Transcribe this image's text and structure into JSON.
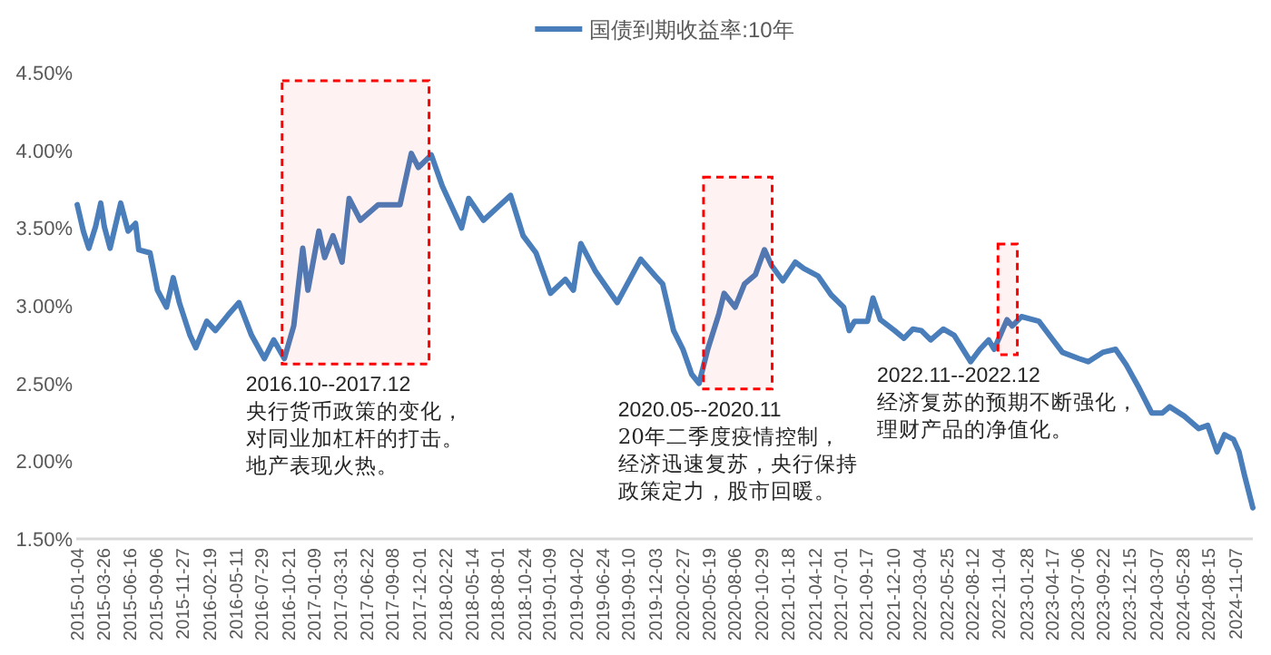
{
  "chart_data": {
    "type": "line",
    "legend": "top",
    "grid": false,
    "marker": "none",
    "line_style": "solid",
    "xlim": [
      "2015-01-01",
      "2024-12-31"
    ],
    "xticks": [
      "2015-01-04",
      "2015-03-26",
      "2015-06-16",
      "2015-09-06",
      "2015-11-27",
      "2016-02-19",
      "2016-05-11",
      "2016-07-29",
      "2016-10-21",
      "2017-01-09",
      "2017-03-31",
      "2017-06-22",
      "2017-09-08",
      "2017-12-01",
      "2018-02-22",
      "2018-05-14",
      "2018-08-01",
      "2018-10-24",
      "2019-01-09",
      "2019-04-02",
      "2019-06-24",
      "2019-09-10",
      "2019-12-03",
      "2020-02-27",
      "2020-05-19",
      "2020-08-06",
      "2020-10-29",
      "2021-01-18",
      "2021-04-12",
      "2021-07-01",
      "2021-09-17",
      "2021-12-10",
      "2022-03-04",
      "2022-05-25",
      "2022-08-12",
      "2022-11-04",
      "2023-01-28",
      "2023-04-17",
      "2023-07-06",
      "2023-09-22",
      "2023-12-15",
      "2024-03-07",
      "2024-05-28",
      "2024-08-15",
      "2024-11-07"
    ],
    "ylim": [
      1.5,
      4.5
    ],
    "yticks": [
      {
        "value": 1.5,
        "label": "1.50%"
      },
      {
        "value": 2.0,
        "label": "2.00%"
      },
      {
        "value": 2.5,
        "label": "2.50%"
      },
      {
        "value": 3.0,
        "label": "3.00%"
      },
      {
        "value": 3.5,
        "label": "3.50%"
      },
      {
        "value": 4.0,
        "label": "4.00%"
      },
      {
        "value": 4.5,
        "label": "4.50%"
      }
    ],
    "series": [
      {
        "name": "国债到期收益率:10年",
        "color": "#4a7ebb",
        "x": [
          "2015-01-04",
          "2015-01-23",
          "2015-02-09",
          "2015-03-02",
          "2015-03-18",
          "2015-03-29",
          "2015-04-16",
          "2015-05-19",
          "2015-06-11",
          "2015-07-04",
          "2015-07-14",
          "2015-08-18",
          "2015-09-10",
          "2015-10-08",
          "2015-10-29",
          "2015-11-17",
          "2015-12-20",
          "2016-01-07",
          "2016-02-10",
          "2016-03-08",
          "2016-04-16",
          "2016-05-20",
          "2016-06-28",
          "2016-08-07",
          "2016-09-05",
          "2016-10-08",
          "2016-11-06",
          "2016-12-04",
          "2016-12-20",
          "2017-01-23",
          "2017-02-10",
          "2017-03-08",
          "2017-04-05",
          "2017-04-27",
          "2017-06-01",
          "2017-07-26",
          "2017-10-02",
          "2017-11-06",
          "2017-11-28",
          "2018-01-07",
          "2018-02-10",
          "2018-04-11",
          "2018-05-03",
          "2018-06-18",
          "2018-09-10",
          "2018-10-19",
          "2018-11-28",
          "2019-01-12",
          "2019-02-27",
          "2019-03-24",
          "2019-04-16",
          "2019-06-01",
          "2019-08-07",
          "2019-10-19",
          "2019-12-04",
          "2019-12-26",
          "2020-01-29",
          "2020-02-27",
          "2020-03-25",
          "2020-04-17",
          "2020-05-14",
          "2020-06-18",
          "2020-07-04",
          "2020-08-07",
          "2020-09-05",
          "2020-10-09",
          "2020-11-06",
          "2020-11-28",
          "2021-01-02",
          "2021-02-10",
          "2021-03-08",
          "2021-04-22",
          "2021-06-01",
          "2021-07-10",
          "2021-07-27",
          "2021-08-13",
          "2021-09-22",
          "2021-10-09",
          "2021-11-01",
          "2021-12-15",
          "2022-01-13",
          "2022-02-10",
          "2022-03-08",
          "2022-04-06",
          "2022-05-15",
          "2022-06-18",
          "2022-08-08",
          "2022-09-06",
          "2022-10-03",
          "2022-10-20",
          "2022-11-29",
          "2022-12-15",
          "2023-01-13",
          "2023-03-08",
          "2023-04-17",
          "2023-05-20",
          "2023-07-10",
          "2023-08-08",
          "2023-09-22",
          "2023-11-01",
          "2023-12-04",
          "2024-01-13",
          "2024-02-21",
          "2024-03-25",
          "2024-04-17",
          "2024-06-01",
          "2024-07-16",
          "2024-08-13",
          "2024-09-11",
          "2024-10-04",
          "2024-11-01",
          "2024-11-18",
          "2024-12-05",
          "2024-12-31"
        ],
        "values": [
          3.65,
          3.48,
          3.37,
          3.51,
          3.66,
          3.51,
          3.37,
          3.66,
          3.48,
          3.53,
          3.36,
          3.34,
          3.1,
          2.99,
          3.18,
          3.02,
          2.81,
          2.73,
          2.9,
          2.84,
          2.94,
          3.02,
          2.81,
          2.66,
          2.78,
          2.66,
          2.87,
          3.37,
          3.1,
          3.48,
          3.31,
          3.45,
          3.28,
          3.69,
          3.55,
          3.65,
          3.65,
          3.98,
          3.89,
          3.97,
          3.77,
          3.5,
          3.69,
          3.55,
          3.71,
          3.45,
          3.34,
          3.08,
          3.17,
          3.1,
          3.4,
          3.22,
          3.02,
          3.3,
          3.19,
          3.14,
          2.84,
          2.72,
          2.56,
          2.5,
          2.72,
          2.95,
          3.08,
          2.99,
          3.14,
          3.2,
          3.36,
          3.26,
          3.16,
          3.28,
          3.24,
          3.19,
          3.07,
          2.99,
          2.84,
          2.9,
          2.9,
          3.05,
          2.91,
          2.84,
          2.79,
          2.85,
          2.84,
          2.78,
          2.85,
          2.81,
          2.64,
          2.72,
          2.78,
          2.72,
          2.91,
          2.87,
          2.93,
          2.9,
          2.79,
          2.7,
          2.66,
          2.64,
          2.7,
          2.72,
          2.62,
          2.47,
          2.31,
          2.31,
          2.35,
          2.29,
          2.21,
          2.23,
          2.06,
          2.17,
          2.14,
          2.06,
          1.91,
          1.7
        ]
      }
    ],
    "bands": [
      {
        "axis": "x",
        "from": "2016-10-01",
        "to": "2017-12-31",
        "color": "#ff0000",
        "label": "2016.10--2017.12\n央行货币政策的变化，对同业加杠杆的打击。地产表现火热。"
      },
      {
        "axis": "x",
        "from": "2020-05-01",
        "to": "2020-11-30",
        "color": "#ff0000",
        "label": "2020.05--2020.11\n20年二季度疫情控制，经济迅速复苏，央行保持政策定力，股市回暖。"
      },
      {
        "axis": "x",
        "from": "2022-11-01",
        "to": "2022-12-31",
        "color": "#ff0000",
        "label": "2022.11--2022.12\n经济复苏的预期不断强化，理财产品的净值化。"
      }
    ]
  }
}
